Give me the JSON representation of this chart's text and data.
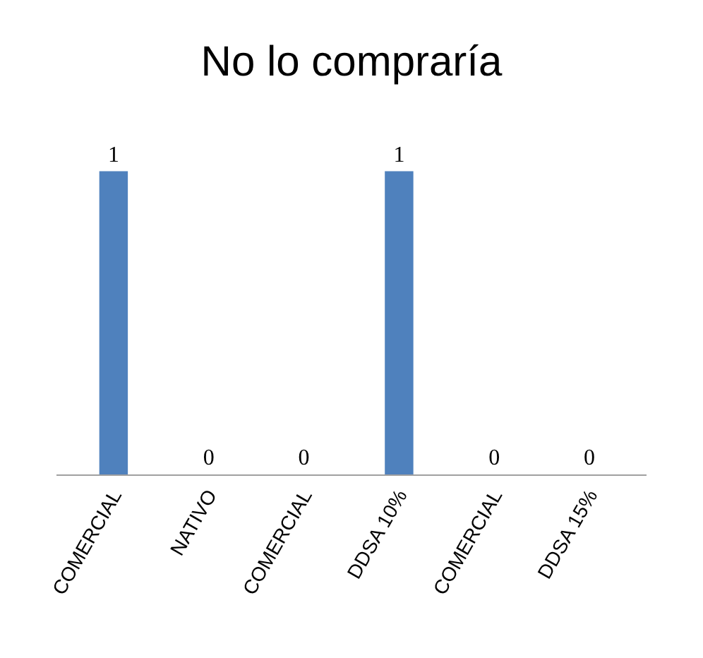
{
  "chart_data": {
    "type": "bar",
    "title": "No lo compraría",
    "categories": [
      "COMERCIAL",
      "NATIVO",
      "COMERCIAL",
      "DDSA 10%",
      "COMERCIAL",
      "DDSA 15%"
    ],
    "values": [
      1,
      0,
      0,
      1,
      0,
      0
    ],
    "color": "#4f81bd",
    "data_labels": true,
    "legend": false
  }
}
